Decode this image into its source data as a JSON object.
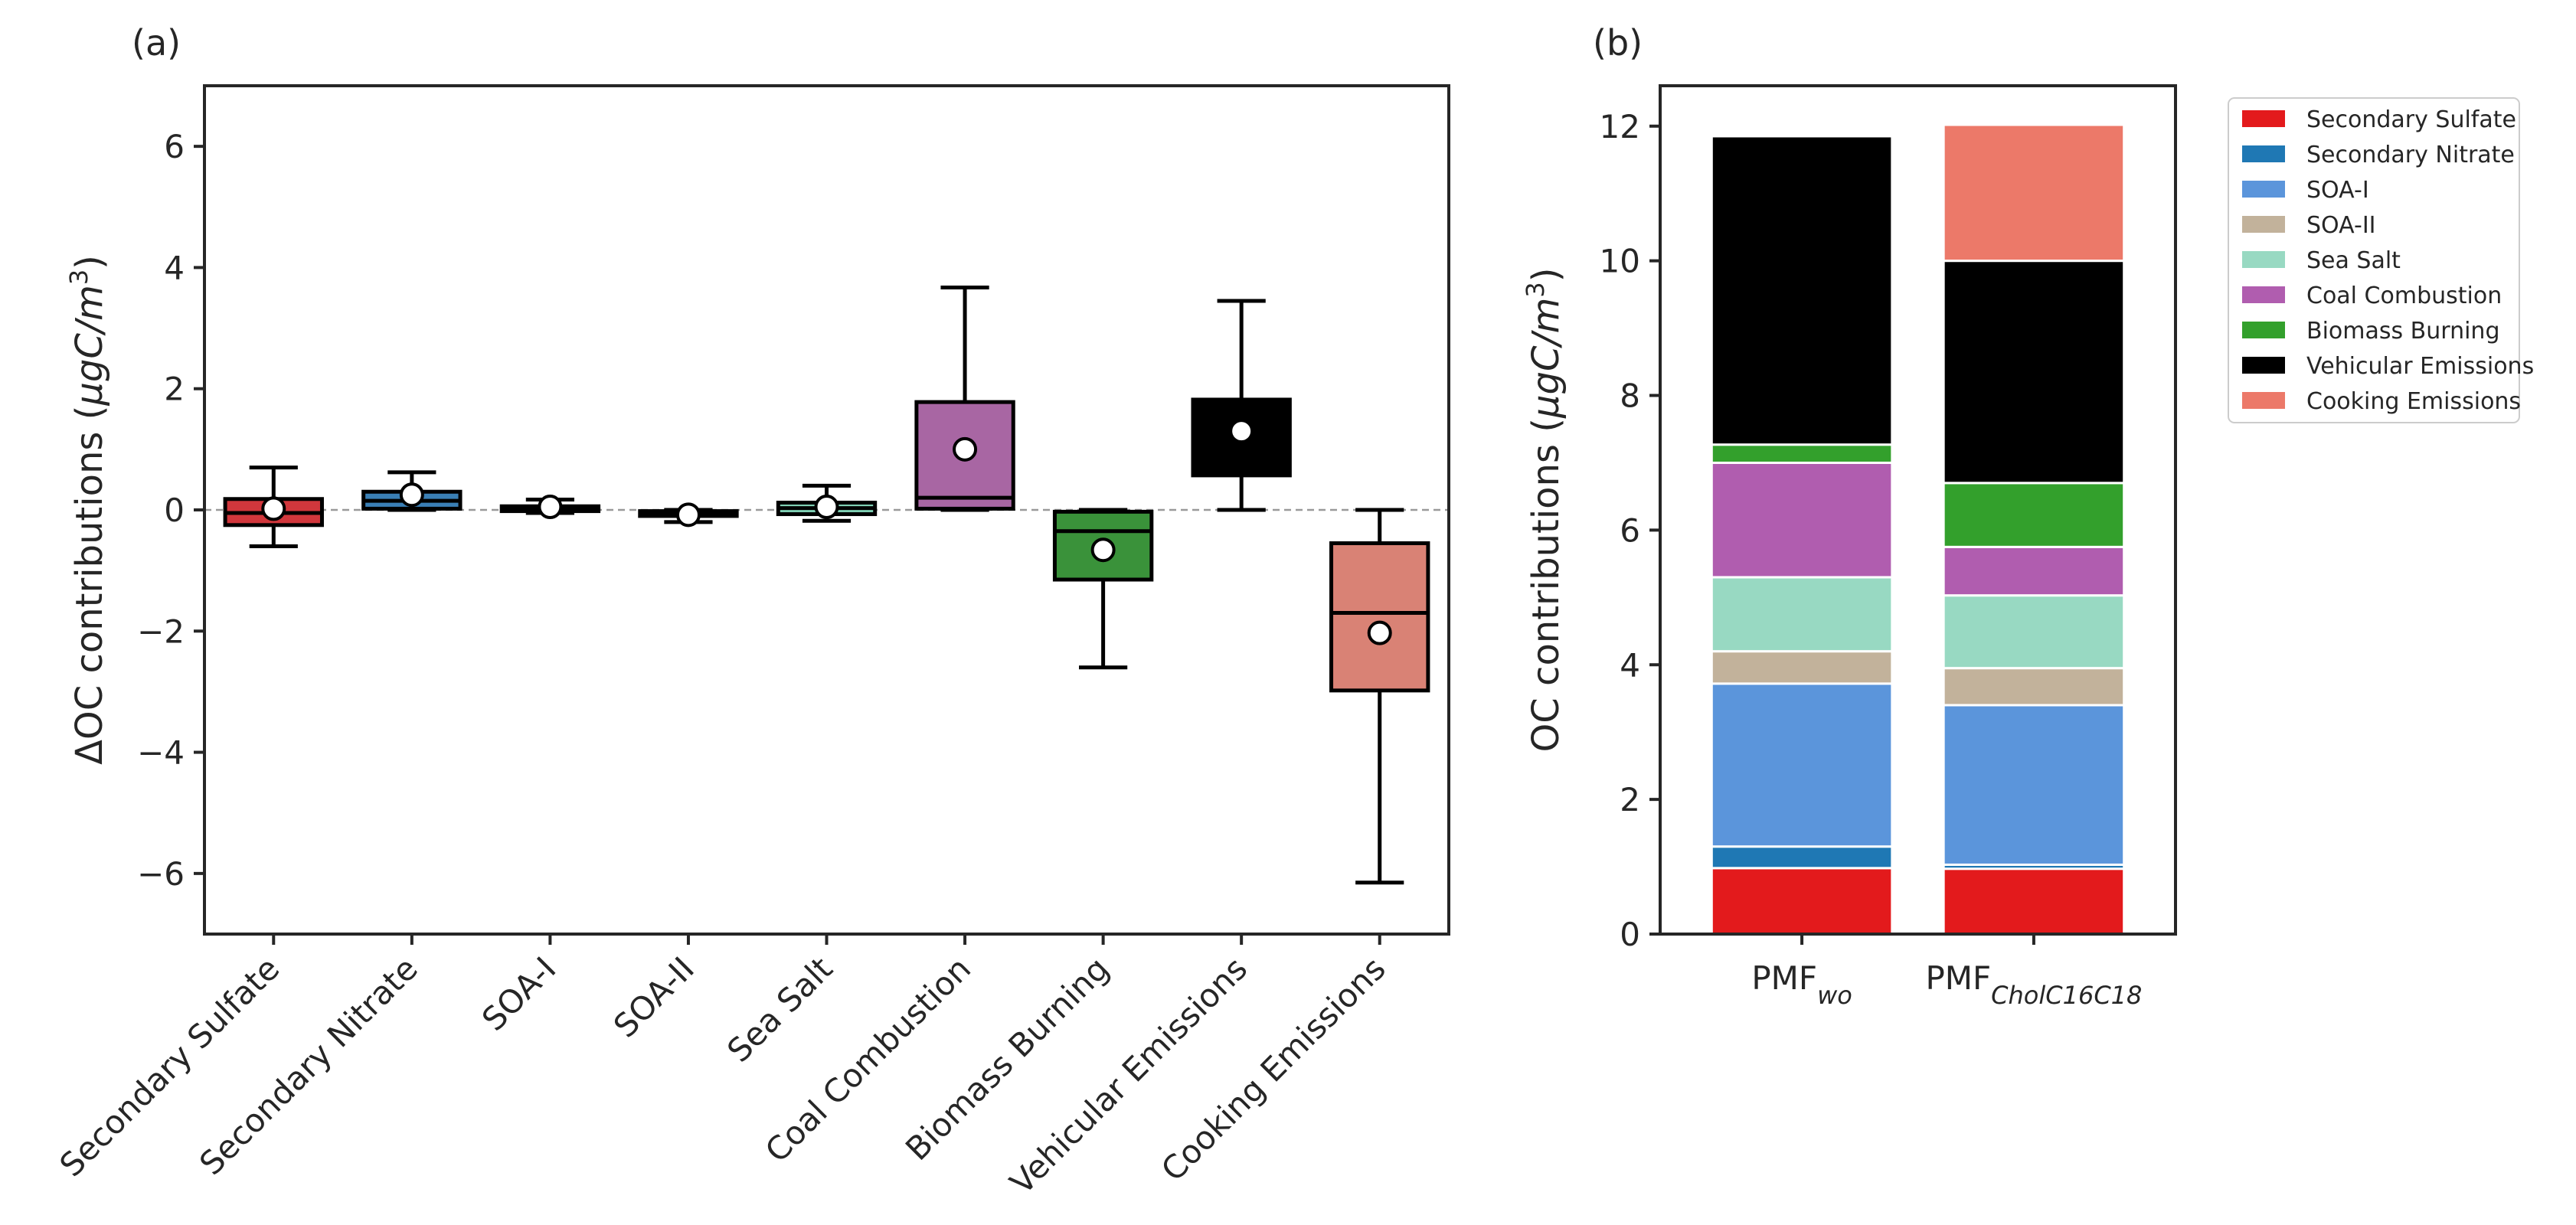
{
  "figure": {
    "panel_a_label": "(a)",
    "panel_b_label": "(b)"
  },
  "colors": {
    "Secondary Sulfate": "#e31a1c",
    "Secondary Nitrate": "#1f78b4",
    "SOA-I": "#5b95db",
    "SOA-II": "#c2b29b",
    "Sea Salt": "#98d9c2",
    "Coal Combustion": "#b05daf",
    "Biomass Burning": "#33a02c",
    "Vehicular Emissions": "#000000",
    "Cooking Emissions": "#ec7969"
  },
  "chart_data": [
    {
      "panel": "(a)",
      "type": "box",
      "title": "",
      "xlabel": "",
      "ylabel": "ΔOC contributions (",
      "ylabel_math": "μgC/m",
      "ylabel_sup": "3",
      "ylabel_close": ")",
      "ylim": [
        -7,
        7
      ],
      "yticks": [
        6,
        4,
        2,
        0,
        -2,
        -4,
        -6
      ],
      "ytick_labels": [
        "6",
        "4",
        "2",
        "0",
        "−2",
        "−4",
        "−6"
      ],
      "zero_line": true,
      "categories": [
        "Secondary Sulfate",
        "Secondary Nitrate",
        "SOA-I",
        "SOA-II",
        "Sea Salt",
        "Coal Combustion",
        "Biomass Burning",
        "Vehicular Emissions",
        "Cooking Emissions"
      ],
      "box_colors": [
        "#d1373c",
        "#3a7fb5",
        "#4a82c8",
        "#c2b29b",
        "#7fd0b4",
        "#a866a3",
        "#3a923a",
        "#000000",
        "#d98275"
      ],
      "boxes": [
        {
          "whisker_low": -0.6,
          "q1": -0.25,
          "median": -0.05,
          "q3": 0.18,
          "whisker_high": 0.7,
          "mean": 0.02
        },
        {
          "whisker_low": 0.0,
          "q1": 0.02,
          "median": 0.15,
          "q3": 0.3,
          "whisker_high": 0.62,
          "mean": 0.25
        },
        {
          "whisker_low": -0.05,
          "q1": -0.02,
          "median": 0.03,
          "q3": 0.06,
          "whisker_high": 0.17,
          "mean": 0.05
        },
        {
          "whisker_low": -0.2,
          "q1": -0.1,
          "median": -0.06,
          "q3": -0.02,
          "whisker_high": 0.0,
          "mean": -0.08
        },
        {
          "whisker_low": -0.18,
          "q1": -0.07,
          "median": 0.03,
          "q3": 0.12,
          "whisker_high": 0.4,
          "mean": 0.05
        },
        {
          "whisker_low": 0.0,
          "q1": 0.02,
          "median": 0.2,
          "q3": 1.78,
          "whisker_high": 3.67,
          "mean": 1.0
        },
        {
          "whisker_low": -2.6,
          "q1": -1.15,
          "median": -0.35,
          "q3": -0.03,
          "whisker_high": 0.0,
          "mean": -0.66
        },
        {
          "whisker_low": 0.0,
          "q1": 0.57,
          "median": 1.3,
          "q3": 1.82,
          "whisker_high": 3.45,
          "mean": 1.3
        },
        {
          "whisker_low": -6.15,
          "q1": -2.98,
          "median": -1.7,
          "q3": -0.55,
          "whisker_high": 0.0,
          "mean": -2.03
        }
      ]
    },
    {
      "panel": "(b)",
      "type": "bar",
      "stacked": true,
      "title": "",
      "xlabel": "",
      "ylabel": "OC contributions (",
      "ylabel_math": "μgC/m",
      "ylabel_sup": "3",
      "ylabel_close": ")",
      "ylim": [
        0,
        12.6
      ],
      "yticks": [
        0,
        2,
        4,
        6,
        8,
        10,
        12
      ],
      "categories": [
        {
          "base": "PMF",
          "sub": "wo"
        },
        {
          "base": "PMF",
          "sub": "CholC16C18"
        }
      ],
      "legend_position": "outside-upper-right",
      "series": [
        {
          "name": "Secondary Sulfate",
          "values": [
            0.98,
            0.97
          ]
        },
        {
          "name": "Secondary Nitrate",
          "values": [
            0.32,
            0.06
          ]
        },
        {
          "name": "SOA-I",
          "values": [
            2.42,
            2.37
          ]
        },
        {
          "name": "SOA-II",
          "values": [
            0.48,
            0.55
          ]
        },
        {
          "name": "Sea Salt",
          "values": [
            1.1,
            1.08
          ]
        },
        {
          "name": "Coal Combustion",
          "values": [
            1.7,
            0.72
          ]
        },
        {
          "name": "Biomass Burning",
          "values": [
            0.27,
            0.95
          ]
        },
        {
          "name": "Vehicular Emissions",
          "values": [
            4.58,
            3.3
          ]
        },
        {
          "name": "Cooking Emissions",
          "values": [
            0.0,
            2.02
          ]
        }
      ]
    }
  ]
}
